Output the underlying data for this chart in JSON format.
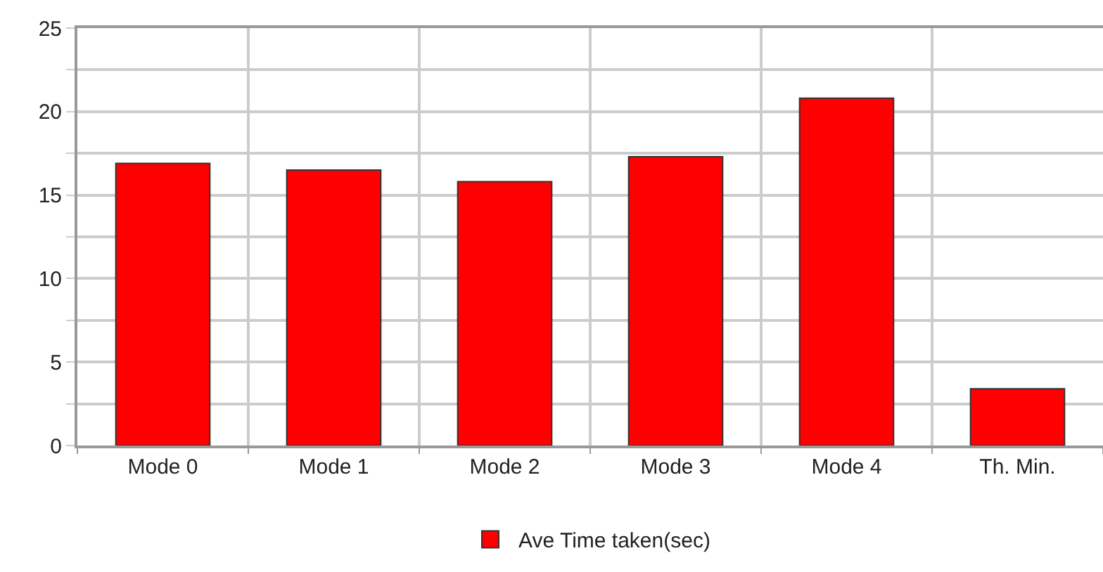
{
  "chart_data": {
    "type": "bar",
    "categories": [
      "Mode 0",
      "Mode 1",
      "Mode 2",
      "Mode 3",
      "Mode 4",
      "Th. Min."
    ],
    "series": [
      {
        "name": "Ave Time taken(sec)",
        "color": "#ff0000",
        "values": [
          16.9,
          16.5,
          15.8,
          17.3,
          20.8,
          3.4
        ]
      }
    ],
    "ylim": [
      0,
      25
    ],
    "yticks": [
      0,
      {
        "value": 2.5,
        "label": null
      },
      5,
      {
        "value": 7.5,
        "label": null
      },
      10,
      {
        "value": 12.5,
        "label": null
      },
      15,
      {
        "value": 17.5,
        "label": null
      },
      20,
      {
        "value": 22.5,
        "label": null
      },
      25
    ],
    "grid": true,
    "legend": "bottom"
  }
}
